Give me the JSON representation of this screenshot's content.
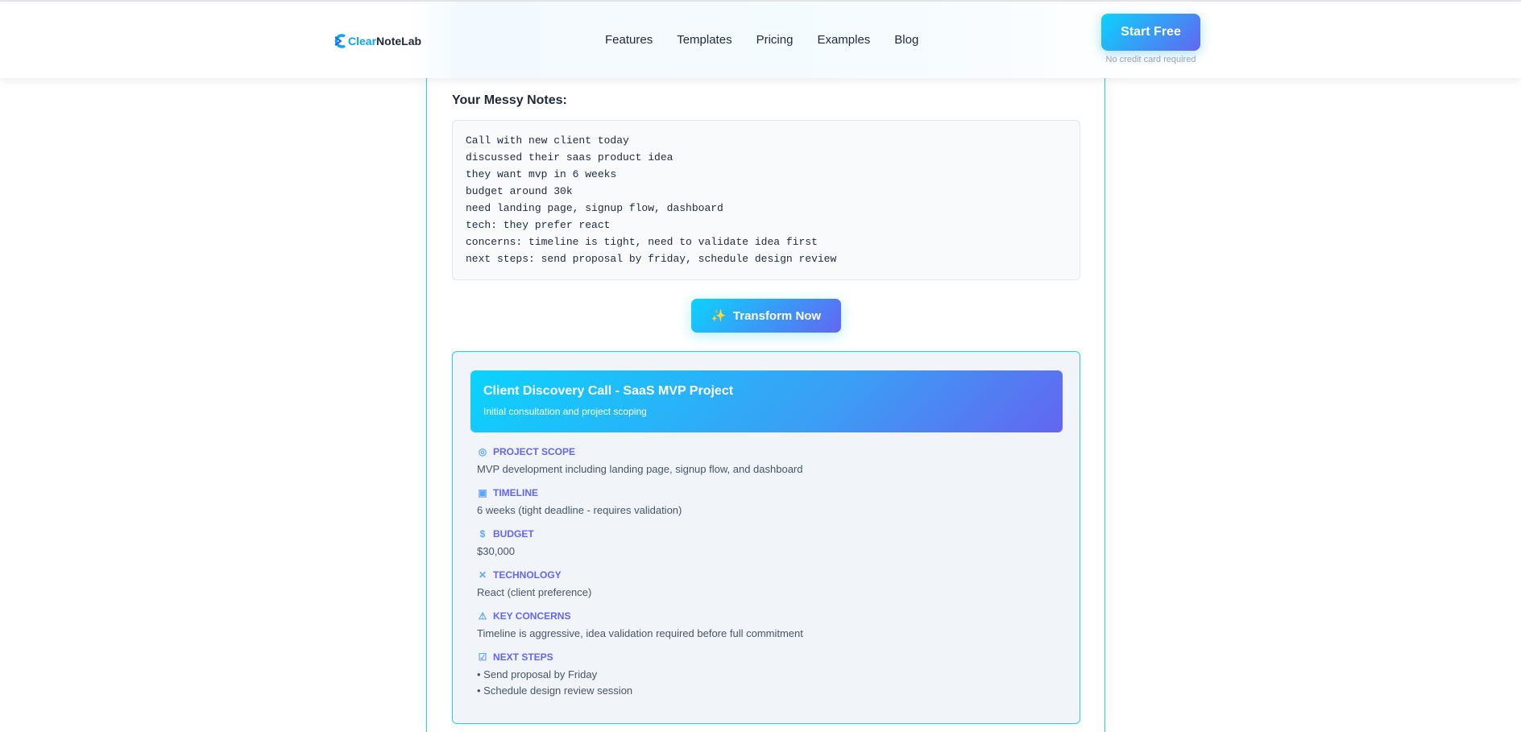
{
  "header": {
    "logo_part1": "Clear",
    "logo_part2": "NoteLab",
    "nav": [
      "Features",
      "Templates",
      "Pricing",
      "Examples",
      "Blog"
    ],
    "cta": "Start Free",
    "cta_note": "No credit card required"
  },
  "input": {
    "label": "Your Messy Notes:",
    "notes": "Call with new client today\ndiscussed their saas product idea\nthey want mvp in 6 weeks\nbudget around 30k\nneed landing page, signup flow, dashboard\ntech: they prefer react\nconcerns: timeline is tight, need to validate idea first\nnext steps: send proposal by friday, schedule design review"
  },
  "transform_button": {
    "icon": "✨",
    "label": "Transform Now"
  },
  "result": {
    "title": "Client Discovery Call - SaaS MVP Project",
    "subtitle": "Initial consultation and project scoping",
    "sections": [
      {
        "icon": "target-icon",
        "label": "PROJECT SCOPE",
        "body": "MVP development including landing page, signup flow, and dashboard"
      },
      {
        "icon": "calendar-icon",
        "label": "TIMELINE",
        "body": "6 weeks (tight deadline - requires validation)"
      },
      {
        "icon": "money-bag-icon",
        "label": "BUDGET",
        "body": "$30,000"
      },
      {
        "icon": "tools-icon",
        "label": "TECHNOLOGY",
        "body": "React (client preference)"
      },
      {
        "icon": "warning-icon",
        "label": "KEY CONCERNS",
        "body": "Timeline is aggressive, idea validation required before full commitment"
      },
      {
        "icon": "checkbox-icon",
        "label": "NEXT STEPS",
        "items": [
          "• Send proposal by Friday",
          "• Schedule design review session"
        ]
      }
    ]
  },
  "colors": {
    "accent_start": "#0bd3fd",
    "accent_end": "#6366f1",
    "label": "#6366f1",
    "border": "#22d3ee"
  }
}
